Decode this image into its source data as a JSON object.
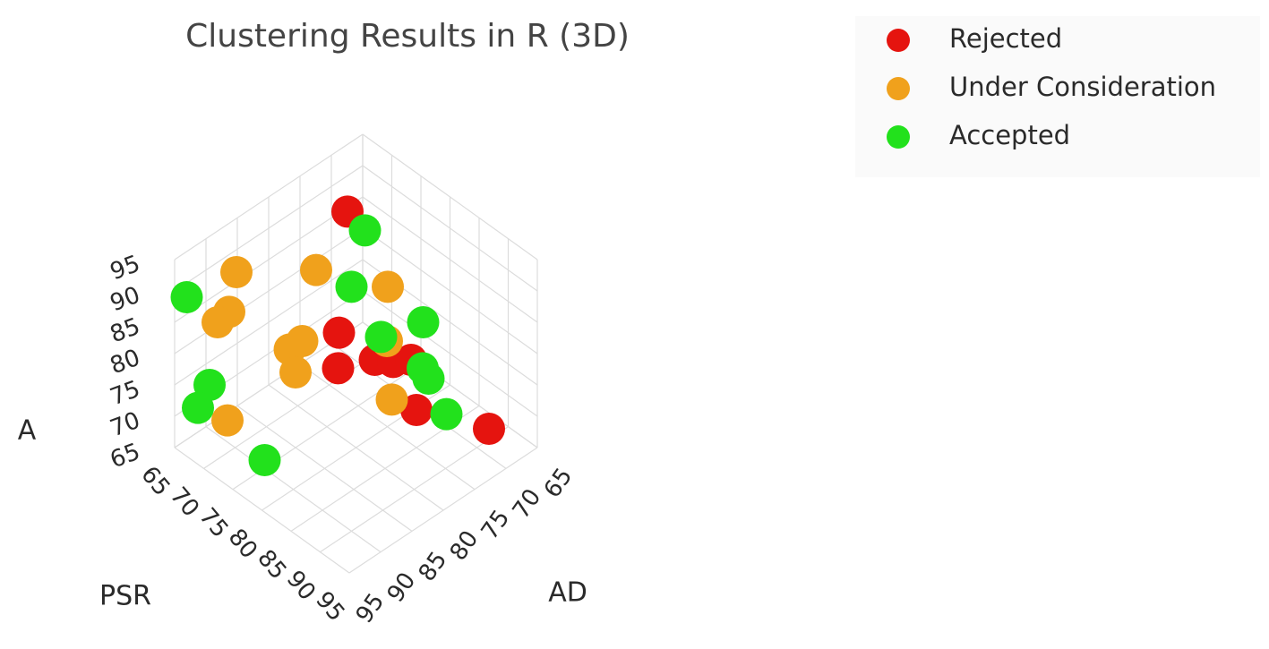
{
  "chart_data": {
    "type": "scatter3d",
    "title": "Clustering Results in R (3D)",
    "xlabel": "PSR",
    "ylabel": "AD",
    "zlabel": "A",
    "xlim": [
      65,
      95
    ],
    "ylim": [
      65,
      95
    ],
    "zlim": [
      65,
      95
    ],
    "xticks": [
      65,
      70,
      75,
      80,
      85,
      90,
      95
    ],
    "yticks": [
      65,
      70,
      75,
      80,
      85,
      90,
      95
    ],
    "zticks": [
      65,
      70,
      75,
      80,
      85,
      90,
      95
    ],
    "grid": true,
    "legend": "top-right",
    "series": [
      {
        "name": "Rejected",
        "color": "#e5140f",
        "x": [
          71,
          76,
          78,
          80,
          81,
          83,
          85,
          91
        ],
        "y": [
          73,
          79,
          81,
          77,
          75,
          74,
          75,
          69
        ],
        "z": [
          92,
          80,
          77,
          77,
          76,
          77,
          71,
          68
        ]
      },
      {
        "name": "Under Consideration",
        "color": "#f0a11c",
        "x": [
          67,
          71,
          79,
          69,
          67,
          74,
          74,
          75,
          81,
          84,
          73
        ],
        "y": [
          87,
          78,
          74,
          90,
          90,
          85,
          83,
          85,
          76,
          78,
          94
        ],
        "z": [
          89,
          86,
          86,
          86,
          83,
          80,
          80,
          77,
          80,
          74,
          74
        ]
      },
      {
        "name": "Accepted",
        "color": "#22e11c",
        "x": [
          74,
          66,
          76,
          84,
          80,
          85,
          86,
          71,
          69,
          88,
          74
        ],
        "y": [
          73,
          94,
          77,
          73,
          76,
          74,
          74,
          95,
          95,
          73,
          89
        ],
        "z": [
          91,
          89,
          86,
          83,
          80,
          77,
          76,
          79,
          74,
          71,
          65
        ]
      }
    ]
  }
}
